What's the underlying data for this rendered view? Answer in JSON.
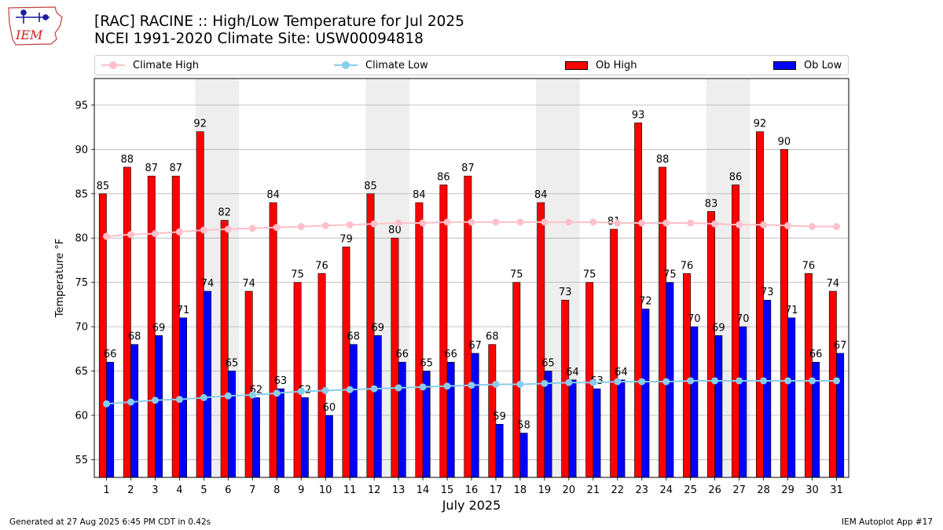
{
  "header": {
    "title_line1": "[RAC] RACINE :: High/Low Temperature for Jul 2025",
    "title_line2": "NCEI 1991-2020 Climate Site: USW00094818"
  },
  "logo": {
    "text": "IEM",
    "icon": "iem-iowa-logo-icon"
  },
  "legend": {
    "climate_high": "Climate High",
    "climate_low": "Climate Low",
    "ob_high": "Ob High",
    "ob_low": "Ob Low"
  },
  "footer": {
    "left": "Generated at 27 Aug 2025 6:45 PM CDT in 0.42s",
    "right": "IEM Autoplot App #17"
  },
  "colors": {
    "ob_high": "#ff0000",
    "ob_low": "#0000ff",
    "climate_high": "#ffc0cb",
    "climate_low": "#87ceeb",
    "weekend_shade": "#eeeeee",
    "grid": "#b0b0b0"
  },
  "chart_data": {
    "type": "bar",
    "xlabel": "July 2025",
    "ylabel": "Temperature °F",
    "ylim": [
      53,
      98
    ],
    "yticks": [
      55,
      60,
      65,
      70,
      75,
      80,
      85,
      90,
      95
    ],
    "grid": true,
    "legend_position": "top",
    "categories": [
      "1",
      "2",
      "3",
      "4",
      "5",
      "6",
      "7",
      "8",
      "9",
      "10",
      "11",
      "12",
      "13",
      "14",
      "15",
      "16",
      "17",
      "18",
      "19",
      "20",
      "21",
      "22",
      "23",
      "24",
      "25",
      "26",
      "27",
      "28",
      "29",
      "30",
      "31"
    ],
    "shaded_days": [
      [
        "5",
        "6"
      ],
      [
        "12",
        "13"
      ],
      [
        "19",
        "20"
      ],
      [
        "26",
        "27"
      ]
    ],
    "series": [
      {
        "name": "Ob High",
        "kind": "bar",
        "values": [
          85,
          88,
          87,
          87,
          92,
          82,
          74,
          84,
          75,
          76,
          79,
          85,
          80,
          84,
          86,
          87,
          68,
          75,
          84,
          73,
          75,
          81,
          93,
          88,
          76,
          83,
          86,
          92,
          90,
          76,
          74
        ]
      },
      {
        "name": "Ob Low",
        "kind": "bar",
        "values": [
          66,
          68,
          69,
          71,
          74,
          65,
          62,
          63,
          62,
          60,
          68,
          69,
          66,
          65,
          66,
          67,
          59,
          58,
          65,
          64,
          63,
          64,
          72,
          75,
          70,
          69,
          70,
          73,
          71,
          66,
          67
        ]
      },
      {
        "name": "Climate High",
        "kind": "line",
        "values": [
          80.2,
          80.4,
          80.5,
          80.7,
          80.9,
          81.0,
          81.1,
          81.2,
          81.3,
          81.4,
          81.5,
          81.6,
          81.7,
          81.7,
          81.8,
          81.8,
          81.8,
          81.8,
          81.8,
          81.8,
          81.8,
          81.7,
          81.7,
          81.7,
          81.7,
          81.6,
          81.5,
          81.5,
          81.4,
          81.3,
          81.3
        ]
      },
      {
        "name": "Climate Low",
        "kind": "line",
        "values": [
          61.3,
          61.5,
          61.7,
          61.8,
          62.0,
          62.2,
          62.3,
          62.5,
          62.7,
          62.8,
          62.9,
          63.0,
          63.1,
          63.2,
          63.3,
          63.4,
          63.5,
          63.5,
          63.6,
          63.7,
          63.7,
          63.8,
          63.8,
          63.8,
          63.9,
          63.9,
          63.9,
          63.9,
          63.9,
          63.9,
          63.9
        ]
      }
    ]
  }
}
